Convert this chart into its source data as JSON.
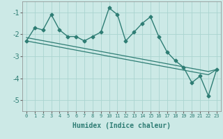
{
  "xlabel": "Humidex (Indice chaleur)",
  "x": [
    0,
    1,
    2,
    3,
    4,
    5,
    6,
    7,
    8,
    9,
    10,
    11,
    12,
    13,
    14,
    15,
    16,
    17,
    18,
    19,
    20,
    21,
    22,
    23
  ],
  "y_main": [
    -2.3,
    -1.7,
    -1.8,
    -1.1,
    -1.8,
    -2.1,
    -2.1,
    -2.3,
    -2.1,
    -1.9,
    -0.8,
    -1.1,
    -2.3,
    -1.9,
    -1.5,
    -1.2,
    -2.1,
    -2.8,
    -3.2,
    -3.5,
    -4.2,
    -3.9,
    -4.8,
    -3.6
  ],
  "y_line1": [
    -2.3,
    -2.37,
    -2.44,
    -2.51,
    -2.58,
    -2.65,
    -2.72,
    -2.79,
    -2.86,
    -2.93,
    -3.0,
    -3.07,
    -3.14,
    -3.21,
    -3.28,
    -3.35,
    -3.42,
    -3.49,
    -3.56,
    -3.63,
    -3.7,
    -3.77,
    -3.84,
    -3.6
  ],
  "y_line2": [
    -2.15,
    -2.22,
    -2.29,
    -2.36,
    -2.43,
    -2.5,
    -2.57,
    -2.64,
    -2.71,
    -2.78,
    -2.85,
    -2.92,
    -2.99,
    -3.06,
    -3.13,
    -3.2,
    -3.27,
    -3.34,
    -3.41,
    -3.48,
    -3.55,
    -3.62,
    -3.69,
    -3.6
  ],
  "color": "#2e7d74",
  "bg_color": "#cce9e6",
  "grid_color": "#aad4d0",
  "ylim": [
    -5.5,
    -0.5
  ],
  "xlim": [
    -0.5,
    23.5
  ]
}
